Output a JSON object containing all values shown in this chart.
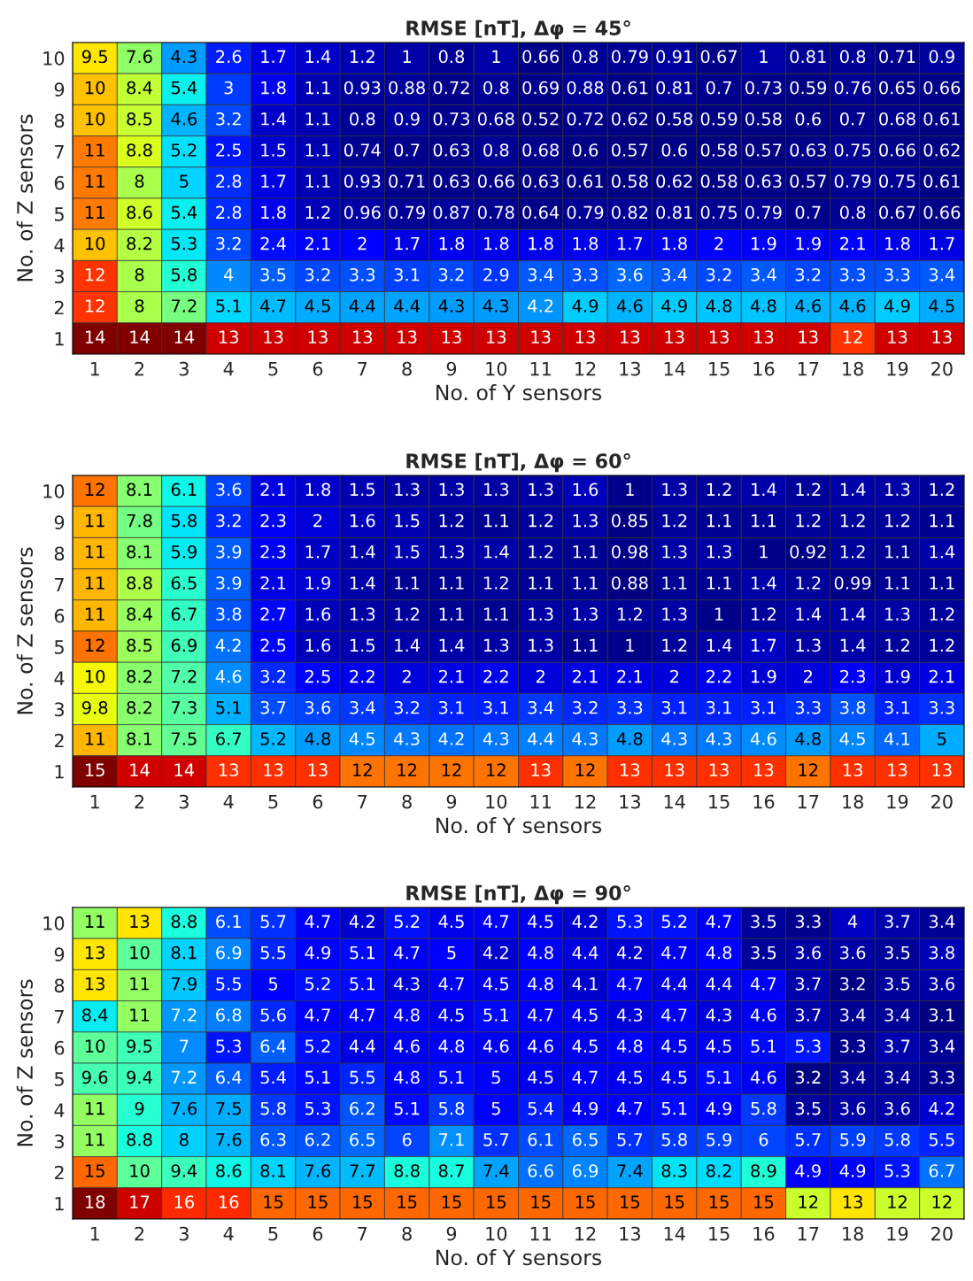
{
  "chart_data": [
    {
      "type": "heatmap",
      "title": "RMSE [nT], Δφ = 45°",
      "xlabel": "No. of Y sensors",
      "ylabel": "No. of Z sensors",
      "data_labels": true,
      "categories": [
        "1",
        "2",
        "3",
        "4",
        "5",
        "6",
        "7",
        "8",
        "9",
        "10",
        "11",
        "12",
        "13",
        "14",
        "15",
        "16",
        "17",
        "18",
        "19",
        "20"
      ],
      "y_categories": [
        "10",
        "9",
        "8",
        "7",
        "6",
        "5",
        "4",
        "3",
        "2",
        "1"
      ],
      "cells": [
        [
          9.5,
          7.6,
          4.3,
          2.6,
          1.7,
          1.4,
          1.2,
          1,
          0.8,
          1,
          0.66,
          0.8,
          0.79,
          0.91,
          0.67,
          1,
          0.81,
          0.8,
          0.71,
          0.9
        ],
        [
          10,
          8.4,
          5.4,
          3,
          1.8,
          1.1,
          0.93,
          0.88,
          0.72,
          0.8,
          0.69,
          0.88,
          0.61,
          0.81,
          0.7,
          0.73,
          0.59,
          0.76,
          0.65,
          0.66
        ],
        [
          10,
          8.5,
          4.6,
          3.2,
          1.4,
          1.1,
          0.8,
          0.9,
          0.73,
          0.68,
          0.52,
          0.72,
          0.62,
          0.58,
          0.59,
          0.58,
          0.6,
          0.7,
          0.68,
          0.61
        ],
        [
          11,
          8.8,
          5.2,
          2.5,
          1.5,
          1.1,
          0.74,
          0.7,
          0.63,
          0.8,
          0.68,
          0.6,
          0.57,
          0.6,
          0.58,
          0.57,
          0.63,
          0.75,
          0.66,
          0.62
        ],
        [
          11,
          8,
          5,
          2.8,
          1.7,
          1.1,
          0.93,
          0.71,
          0.63,
          0.66,
          0.63,
          0.61,
          0.58,
          0.62,
          0.58,
          0.63,
          0.57,
          0.79,
          0.75,
          0.61
        ],
        [
          11,
          8.6,
          5.4,
          2.8,
          1.8,
          1.2,
          0.96,
          0.79,
          0.87,
          0.78,
          0.64,
          0.79,
          0.82,
          0.81,
          0.75,
          0.79,
          0.7,
          0.8,
          0.67,
          0.66
        ],
        [
          10,
          8.2,
          5.3,
          3.2,
          2.4,
          2.1,
          2,
          1.7,
          1.8,
          1.8,
          1.8,
          1.8,
          1.7,
          1.8,
          2,
          1.9,
          1.9,
          2.1,
          1.8,
          1.7
        ],
        [
          12,
          8,
          5.8,
          4,
          3.5,
          3.2,
          3.3,
          3.1,
          3.2,
          2.9,
          3.4,
          3.3,
          3.6,
          3.4,
          3.2,
          3.4,
          3.2,
          3.3,
          3.3,
          3.4
        ],
        [
          12,
          8,
          7.2,
          5.1,
          4.7,
          4.5,
          4.4,
          4.4,
          4.3,
          4.3,
          4.2,
          4.9,
          4.6,
          4.9,
          4.8,
          4.8,
          4.6,
          4.6,
          4.9,
          4.5
        ],
        [
          14,
          14,
          14,
          13,
          13,
          13,
          13,
          13,
          13,
          13,
          13,
          13,
          13,
          13,
          13,
          13,
          13,
          12,
          13,
          13
        ]
      ]
    },
    {
      "type": "heatmap",
      "title": "RMSE [nT], Δφ = 60°",
      "xlabel": "No. of Y sensors",
      "ylabel": "No. of Z sensors",
      "data_labels": true,
      "categories": [
        "1",
        "2",
        "3",
        "4",
        "5",
        "6",
        "7",
        "8",
        "9",
        "10",
        "11",
        "12",
        "13",
        "14",
        "15",
        "16",
        "17",
        "18",
        "19",
        "20"
      ],
      "y_categories": [
        "10",
        "9",
        "8",
        "7",
        "6",
        "5",
        "4",
        "3",
        "2",
        "1"
      ],
      "cells": [
        [
          12,
          8.1,
          6.1,
          3.6,
          2.1,
          1.8,
          1.5,
          1.3,
          1.3,
          1.3,
          1.3,
          1.6,
          1,
          1.3,
          1.2,
          1.4,
          1.2,
          1.4,
          1.3,
          1.2
        ],
        [
          11,
          7.8,
          5.8,
          3.2,
          2.3,
          2,
          1.6,
          1.5,
          1.2,
          1.1,
          1.2,
          1.3,
          0.85,
          1.2,
          1.1,
          1.1,
          1.2,
          1.2,
          1.2,
          1.1
        ],
        [
          11,
          8.1,
          5.9,
          3.9,
          2.3,
          1.7,
          1.4,
          1.5,
          1.3,
          1.4,
          1.2,
          1.1,
          0.98,
          1.3,
          1.3,
          1,
          0.92,
          1.2,
          1.1,
          1.4
        ],
        [
          11,
          8.8,
          6.5,
          3.9,
          2.1,
          1.9,
          1.4,
          1.1,
          1.1,
          1.2,
          1.1,
          1.1,
          0.88,
          1.1,
          1.1,
          1.4,
          1.2,
          0.99,
          1.1,
          1.1
        ],
        [
          11,
          8.4,
          6.7,
          3.8,
          2.7,
          1.6,
          1.3,
          1.2,
          1.1,
          1.1,
          1.3,
          1.3,
          1.2,
          1.3,
          1,
          1.2,
          1.4,
          1.4,
          1.3,
          1.2
        ],
        [
          12,
          8.5,
          6.9,
          4.2,
          2.5,
          1.6,
          1.5,
          1.4,
          1.4,
          1.3,
          1.3,
          1.1,
          1,
          1.2,
          1.4,
          1.7,
          1.3,
          1.4,
          1.2,
          1.2
        ],
        [
          10,
          8.2,
          7.2,
          4.6,
          3.2,
          2.5,
          2.2,
          2,
          2.1,
          2.2,
          2,
          2.1,
          2.1,
          2,
          2.2,
          1.9,
          2,
          2.3,
          1.9,
          2.1
        ],
        [
          9.8,
          8.2,
          7.3,
          5.1,
          3.7,
          3.6,
          3.4,
          3.2,
          3.1,
          3.1,
          3.4,
          3.2,
          3.3,
          3.1,
          3.1,
          3.1,
          3.3,
          3.8,
          3.1,
          3.3
        ],
        [
          11,
          8.1,
          7.5,
          6.7,
          5.2,
          4.8,
          4.5,
          4.3,
          4.2,
          4.3,
          4.4,
          4.3,
          4.8,
          4.3,
          4.3,
          4.6,
          4.8,
          4.5,
          4.1,
          5
        ],
        [
          15,
          14,
          14,
          13,
          13,
          13,
          12,
          12,
          12,
          12,
          13,
          12,
          13,
          13,
          13,
          13,
          12,
          13,
          13,
          13
        ]
      ]
    },
    {
      "type": "heatmap",
      "title": "RMSE [nT], Δφ = 90°",
      "xlabel": "No. of Y sensors",
      "ylabel": "No. of Z sensors",
      "data_labels": true,
      "categories": [
        "1",
        "2",
        "3",
        "4",
        "5",
        "6",
        "7",
        "8",
        "9",
        "10",
        "11",
        "12",
        "13",
        "14",
        "15",
        "16",
        "17",
        "18",
        "19",
        "20"
      ],
      "y_categories": [
        "10",
        "9",
        "8",
        "7",
        "6",
        "5",
        "4",
        "3",
        "2",
        "1"
      ],
      "cells": [
        [
          11,
          13,
          8.8,
          6.1,
          5.7,
          4.7,
          4.2,
          5.2,
          4.5,
          4.7,
          4.5,
          4.2,
          5.3,
          5.2,
          4.7,
          3.5,
          3.3,
          4,
          3.7,
          3.4
        ],
        [
          13,
          10,
          8.1,
          6.9,
          5.5,
          4.9,
          5.1,
          4.7,
          5,
          4.2,
          4.8,
          4.4,
          4.2,
          4.7,
          4.8,
          3.5,
          3.6,
          3.6,
          3.5,
          3.8
        ],
        [
          13,
          11,
          7.9,
          5.5,
          5,
          5.2,
          5.1,
          4.3,
          4.7,
          4.5,
          4.8,
          4.1,
          4.7,
          4.4,
          4.4,
          4.7,
          3.7,
          3.2,
          3.5,
          3.6
        ],
        [
          8.4,
          11,
          7.2,
          6.8,
          5.6,
          4.7,
          4.7,
          4.8,
          4.5,
          5.1,
          4.7,
          4.5,
          4.3,
          4.7,
          4.3,
          4.6,
          3.7,
          3.4,
          3.4,
          3.1
        ],
        [
          10,
          9.5,
          7,
          5.3,
          6.4,
          5.2,
          4.4,
          4.6,
          4.8,
          4.6,
          4.6,
          4.5,
          4.8,
          4.5,
          4.5,
          5.1,
          5.3,
          3.3,
          3.7,
          3.4
        ],
        [
          9.6,
          9.4,
          7.2,
          6.4,
          5.4,
          5.1,
          5.5,
          4.8,
          5.1,
          5,
          4.5,
          4.7,
          4.5,
          4.5,
          5.1,
          4.6,
          3.2,
          3.4,
          3.4,
          3.3
        ],
        [
          11,
          9,
          7.6,
          7.5,
          5.8,
          5.3,
          6.2,
          5.1,
          5.8,
          5,
          5.4,
          4.9,
          4.7,
          5.1,
          4.9,
          5.8,
          3.5,
          3.6,
          3.6,
          4.2
        ],
        [
          11,
          8.8,
          8,
          7.6,
          6.3,
          6.2,
          6.5,
          6,
          7.1,
          5.7,
          6.1,
          6.5,
          5.7,
          5.8,
          5.9,
          6,
          5.7,
          5.9,
          5.8,
          5.5
        ],
        [
          15,
          10,
          9.4,
          8.6,
          8.1,
          7.6,
          7.7,
          8.8,
          8.7,
          7.4,
          6.6,
          6.9,
          7.4,
          8.3,
          8.2,
          8.9,
          4.9,
          4.9,
          5.3,
          6.7
        ],
        [
          18,
          17,
          16,
          16,
          15,
          15,
          15,
          15,
          15,
          15,
          15,
          15,
          15,
          15,
          15,
          15,
          12,
          13,
          12,
          12
        ]
      ]
    }
  ]
}
